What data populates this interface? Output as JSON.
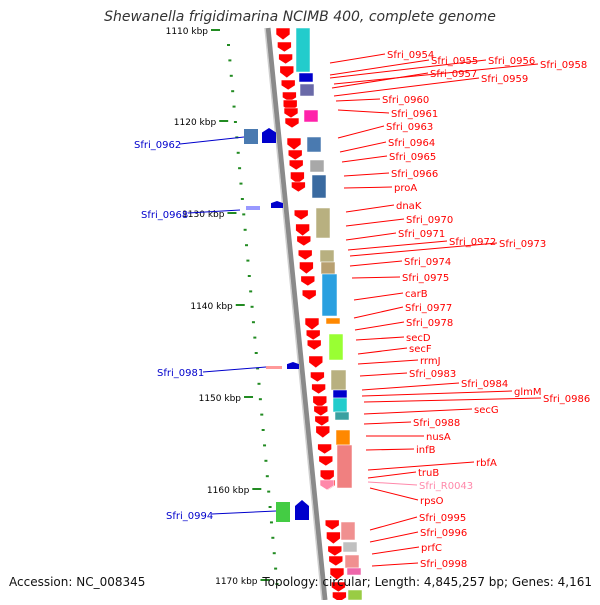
{
  "title": "Shewanella frigidimarina NCIMB 400, complete genome",
  "footer": {
    "accession": "Accession: NC_008345",
    "stats": "Topology: circular; Length: 4,845,257 bp; Genes: 4,161"
  },
  "scale_labels": [
    "1110 kbp",
    "1120 kbp",
    "1130 kbp",
    "1140 kbp",
    "1150 kbp",
    "1160 kbp",
    "1170 kbp"
  ],
  "colors": {
    "forward_gene": "#ff0000",
    "reverse_gene": "#0000cc",
    "rna_gene": "#ff88aa",
    "axis": "#888888",
    "tick": "#228b22"
  },
  "left_genes": [
    "Sfri_0962",
    "Sfri_0968",
    "Sfri_0981",
    "Sfri_0994"
  ],
  "right_genes": [
    "Sfri_0954",
    "Sfri_0955",
    "Sfri_0956",
    "Sfri_0958",
    "Sfri_0957",
    "Sfri_0959",
    "Sfri_0960",
    "Sfri_0961",
    "Sfri_0963",
    "Sfri_0964",
    "Sfri_0965",
    "Sfri_0966",
    "proA",
    "dnaK",
    "Sfri_0970",
    "Sfri_0971",
    "Sfri_0972",
    "Sfri_0973",
    "Sfri_0974",
    "Sfri_0975",
    "carB",
    "Sfri_0977",
    "Sfri_0978",
    "secD",
    "secF",
    "rrmJ",
    "Sfri_0983",
    "Sfri_0984",
    "glmM",
    "Sfri_0986",
    "secG",
    "Sfri_0988",
    "nusA",
    "infB",
    "rbfA",
    "truB",
    "Sfri_R0043",
    "rpsO",
    "Sfri_0995",
    "Sfri_0996",
    "prfC",
    "Sfri_0998"
  ]
}
